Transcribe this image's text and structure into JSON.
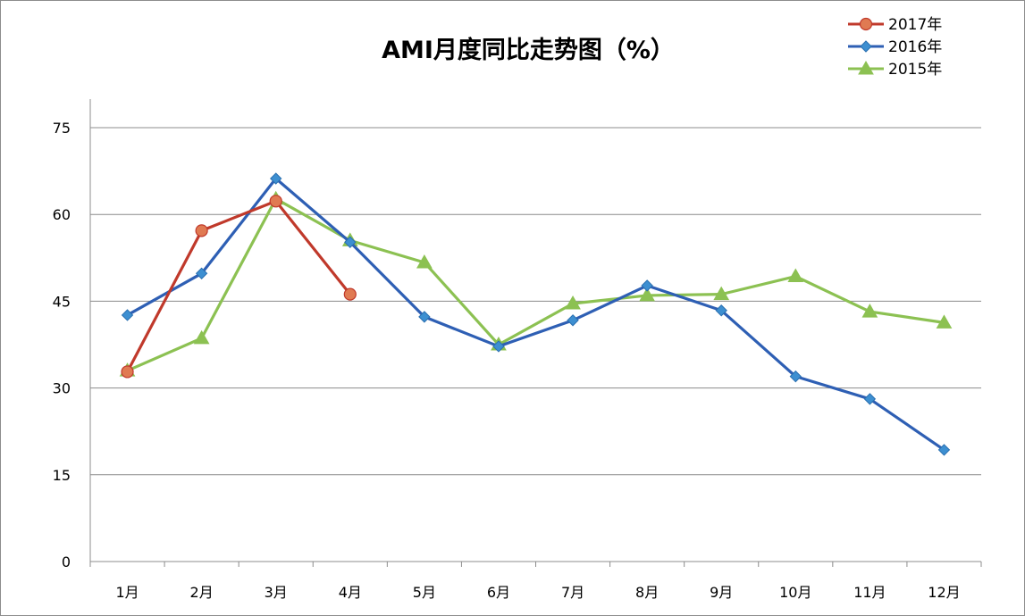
{
  "chart_data": {
    "type": "line",
    "title": "AMI月度同比走势图（%）",
    "xlabel": "",
    "ylabel": "",
    "ylim": [
      0,
      75
    ],
    "yticks": [
      0,
      15,
      30,
      45,
      60,
      75
    ],
    "grid": true,
    "legend_position": "top-right",
    "categories": [
      "1月",
      "2月",
      "3月",
      "4月",
      "5月",
      "6月",
      "7月",
      "8月",
      "9月",
      "10月",
      "11月",
      "12月"
    ],
    "series": [
      {
        "name": "2017年",
        "color": "#c0392b",
        "marker": "circle",
        "values": [
          32.8,
          57.2,
          62.3,
          46.2,
          null,
          null,
          null,
          null,
          null,
          null,
          null,
          null
        ]
      },
      {
        "name": "2016年",
        "color": "#2e5fb4",
        "marker": "diamond",
        "values": [
          42.6,
          49.8,
          66.2,
          55.2,
          42.3,
          37.2,
          41.7,
          47.7,
          43.4,
          32.0,
          28.1,
          19.3
        ]
      },
      {
        "name": "2015年",
        "color": "#8cc152",
        "marker": "triangle",
        "values": [
          33.0,
          38.6,
          62.7,
          55.5,
          51.7,
          37.5,
          44.6,
          46.0,
          46.2,
          49.3,
          43.2,
          41.3
        ]
      }
    ]
  }
}
